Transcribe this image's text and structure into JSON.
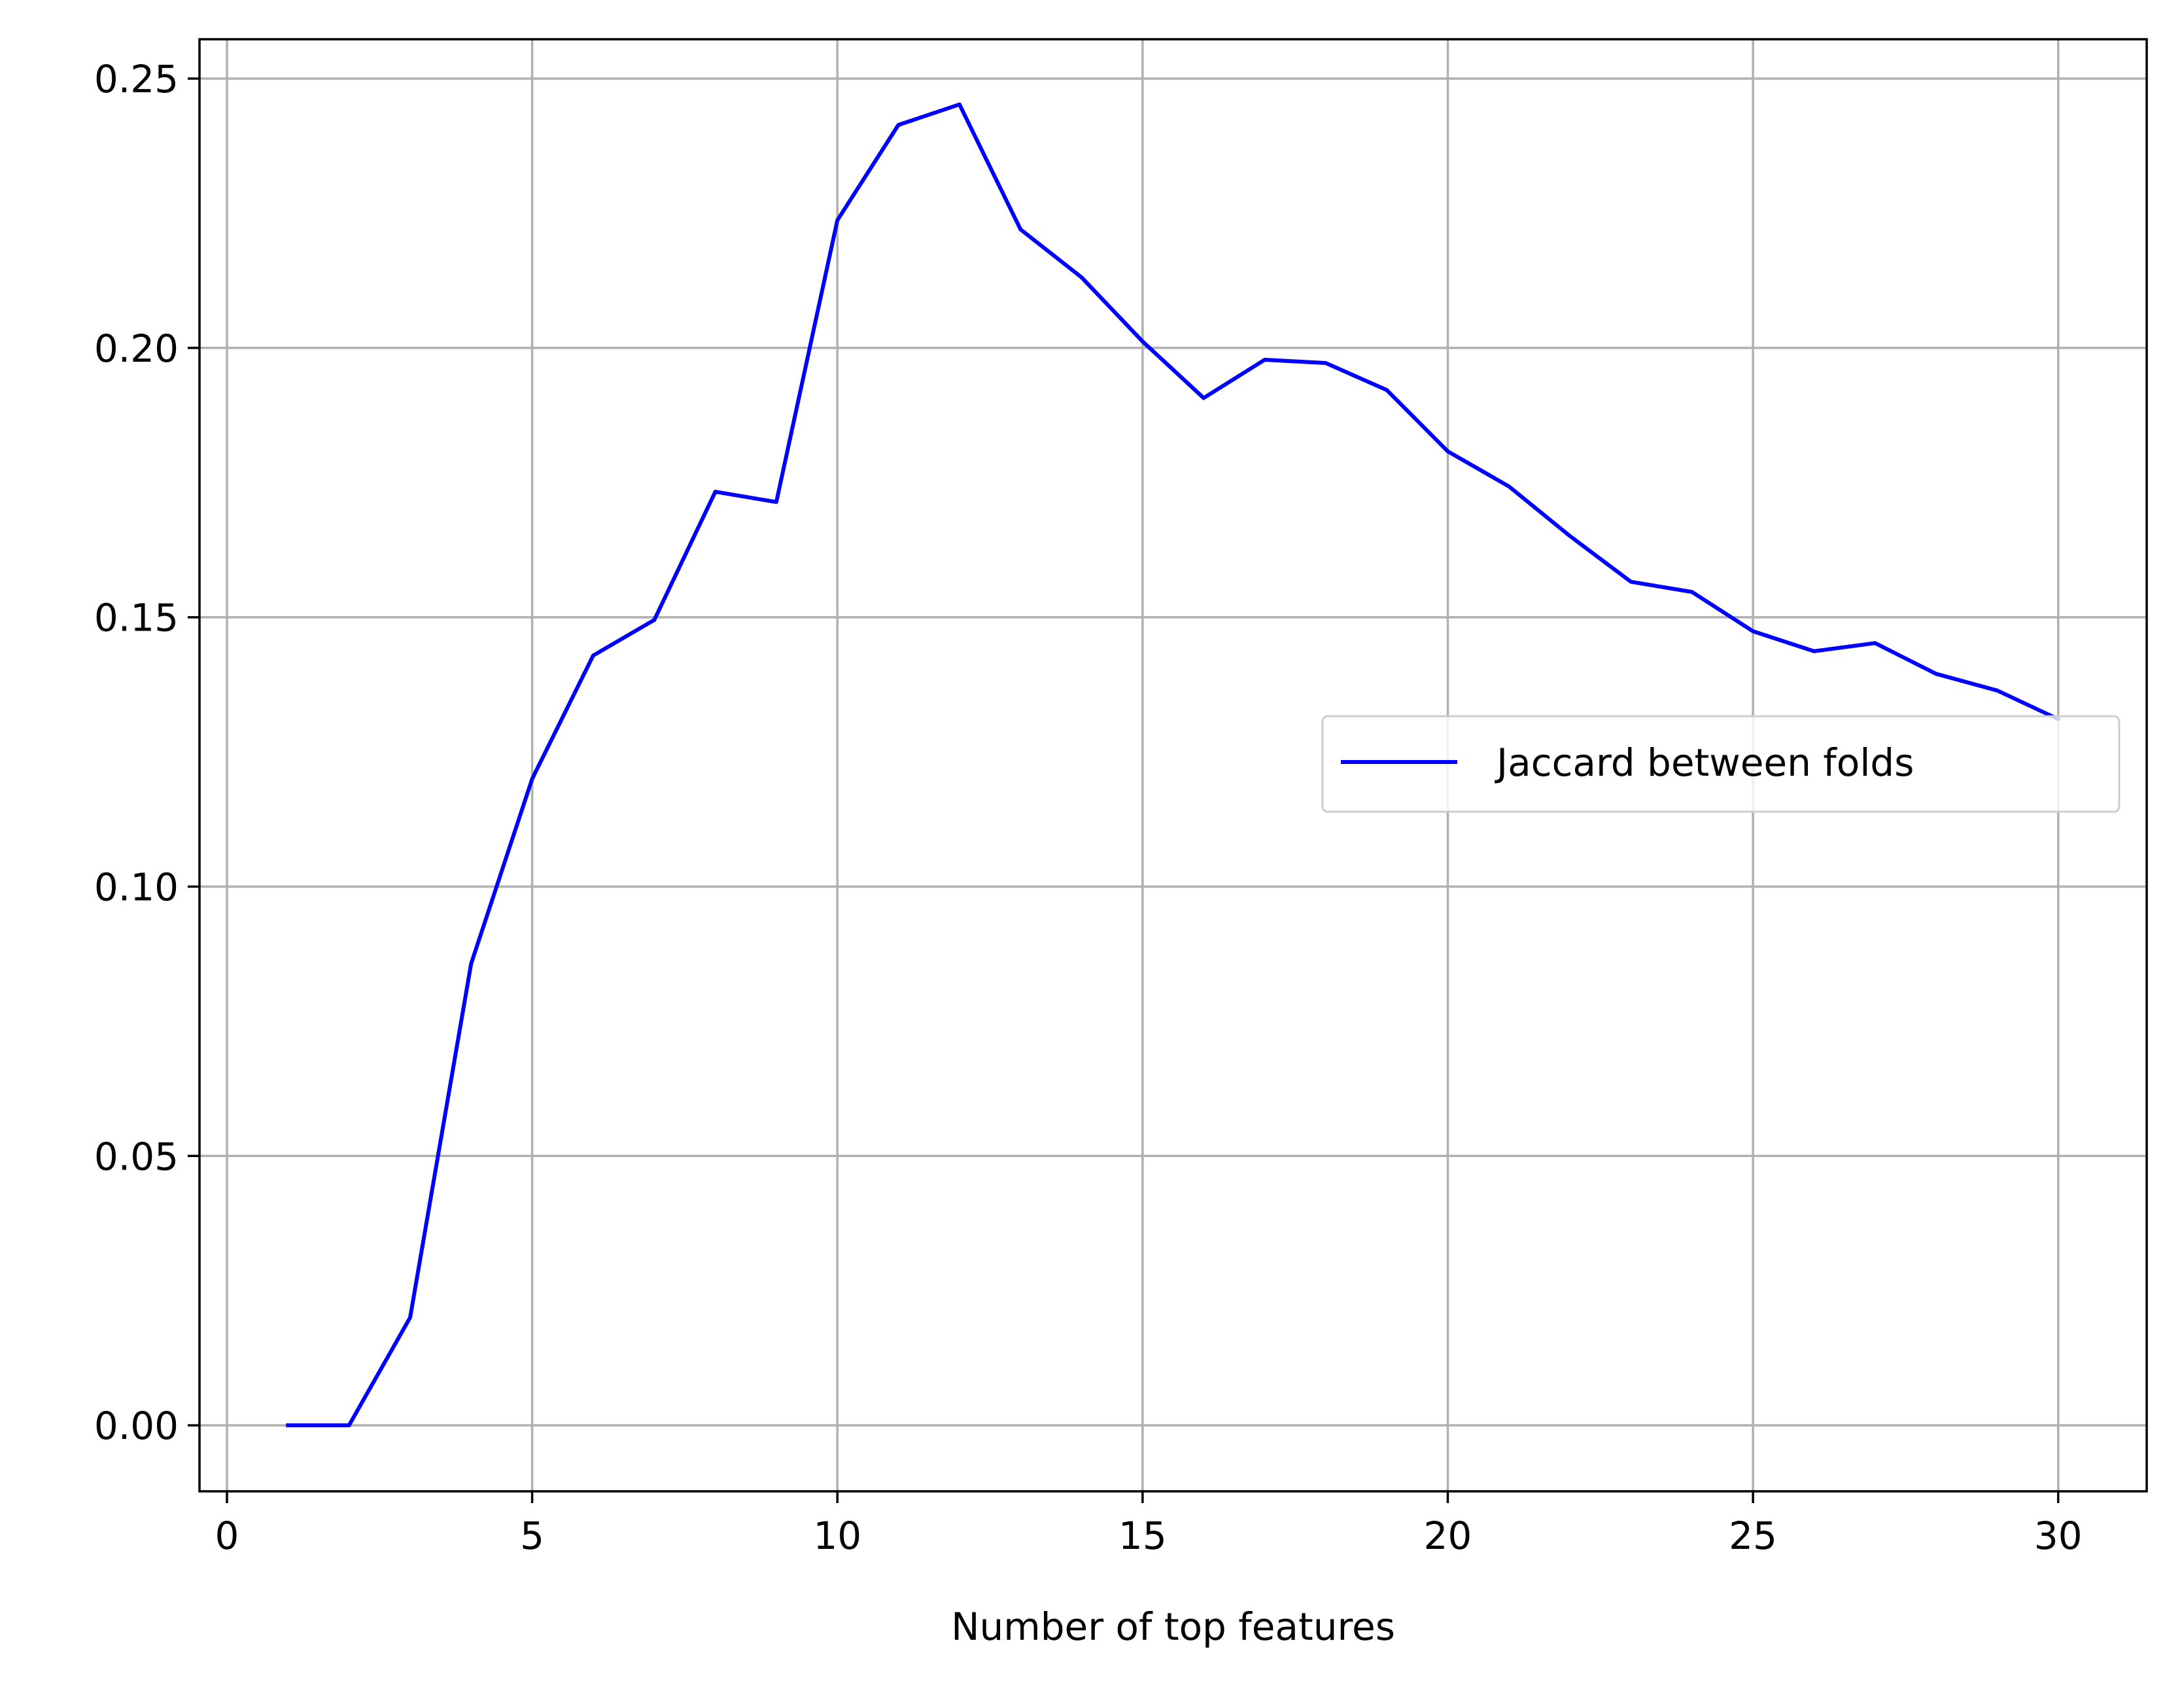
{
  "chart_data": {
    "type": "line",
    "title": "",
    "xlabel": "Number of top features",
    "ylabel": "",
    "xlim": [
      -0.45,
      31.45
    ],
    "ylim": [
      -0.01225,
      0.2573
    ],
    "xticks": [
      0,
      5,
      10,
      15,
      20,
      25,
      30
    ],
    "xtick_labels": [
      "0",
      "5",
      "10",
      "15",
      "20",
      "25",
      "30"
    ],
    "yticks": [
      0.0,
      0.05,
      0.1,
      0.15,
      0.2,
      0.25
    ],
    "ytick_labels": [
      "0.00",
      "0.05",
      "0.10",
      "0.15",
      "0.20",
      "0.25"
    ],
    "grid": true,
    "legend_position": "center-right",
    "series": [
      {
        "name": "Jaccard between folds",
        "color": "#0000ff",
        "x": [
          1,
          2,
          3,
          4,
          5,
          6,
          7,
          8,
          9,
          10,
          11,
          12,
          13,
          14,
          15,
          16,
          17,
          18,
          19,
          20,
          21,
          22,
          23,
          24,
          25,
          26,
          27,
          28,
          29,
          30
        ],
        "y": [
          0.0,
          0.0,
          0.02,
          0.0857,
          0.12,
          0.1429,
          0.1495,
          0.1733,
          0.1714,
          0.2237,
          0.2414,
          0.2452,
          0.222,
          0.2131,
          0.2012,
          0.1907,
          0.1978,
          0.1972,
          0.1922,
          0.1808,
          0.1743,
          0.1651,
          0.1566,
          0.1547,
          0.1474,
          0.1437,
          0.1452,
          0.1395,
          0.1364,
          0.1311
        ]
      }
    ]
  }
}
